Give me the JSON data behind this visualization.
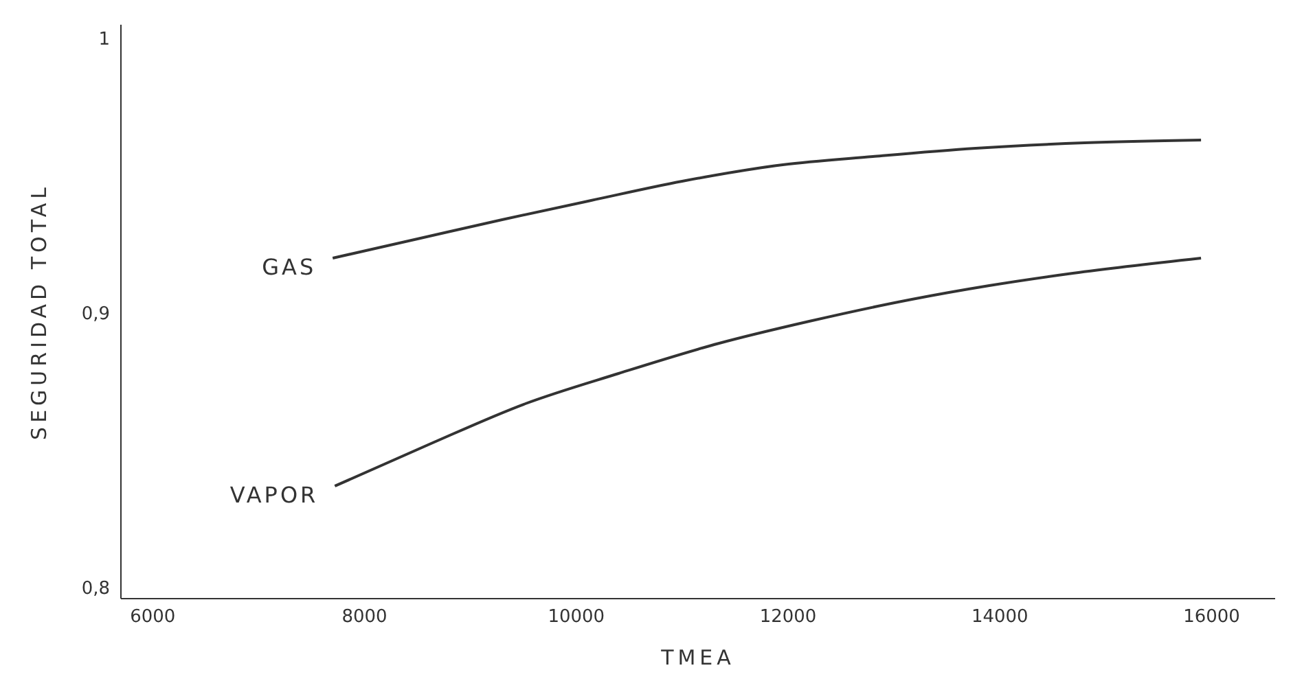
{
  "chart_data": {
    "type": "line",
    "xlabel": "TMEA",
    "ylabel": "SEGURIDAD  TOTAL",
    "xlim": [
      5700,
      16600
    ],
    "ylim": [
      0.796,
      1.005
    ],
    "xticks": [
      6000,
      8000,
      10000,
      12000,
      14000,
      16000
    ],
    "yticks": [
      {
        "value": 0.8,
        "label": "0,8"
      },
      {
        "value": 0.9,
        "label": "0,9"
      },
      1
    ],
    "grid": false,
    "legend": false,
    "marker": "none",
    "line_style": "solid",
    "series": [
      {
        "name": "GAS",
        "color": "#333333",
        "x": [
          7700,
          8500,
          9300,
          10140,
          11000,
          11950,
          12800,
          13770,
          14800,
          15900
        ],
        "values": [
          0.92,
          0.927,
          0.934,
          0.941,
          0.948,
          0.954,
          0.957,
          0.96,
          0.962,
          0.963
        ]
      },
      {
        "name": "VAPOR",
        "color": "#333333",
        "x": [
          7720,
          8600,
          9520,
          10400,
          11350,
          12200,
          13170,
          13900,
          14690,
          15900
        ],
        "values": [
          0.837,
          0.852,
          0.867,
          0.878,
          0.889,
          0.897,
          0.905,
          0.91,
          0.9145,
          0.92
        ]
      }
    ]
  }
}
